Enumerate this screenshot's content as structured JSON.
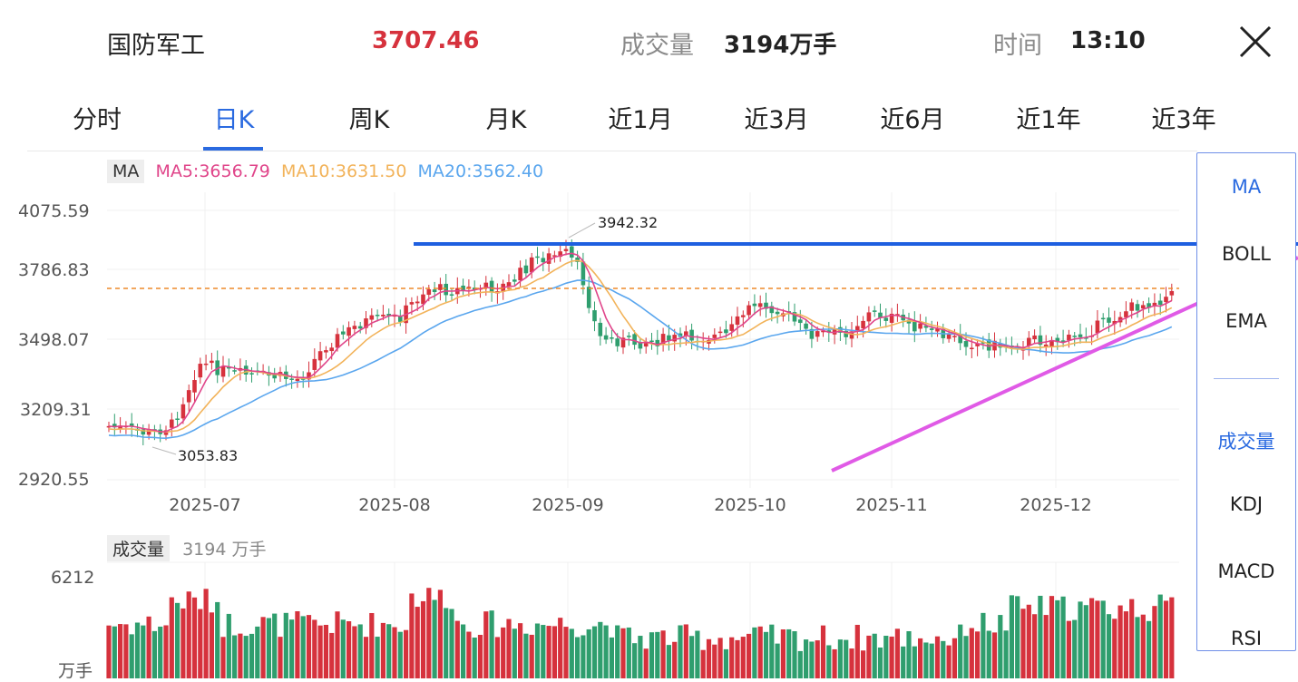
{
  "header": {
    "name": "国防军工",
    "price": "3707.46",
    "volume_label": "成交量",
    "volume_value": "3194万手",
    "time_label": "时间",
    "time_value": "13:10",
    "close_icon": "close-icon"
  },
  "tabs": [
    {
      "label": "分时",
      "active": false
    },
    {
      "label": "日K",
      "active": true
    },
    {
      "label": "周K",
      "active": false
    },
    {
      "label": "月K",
      "active": false
    },
    {
      "label": "近1月",
      "active": false
    },
    {
      "label": "近3月",
      "active": false
    },
    {
      "label": "近6月",
      "active": false
    },
    {
      "label": "近1年",
      "active": false
    },
    {
      "label": "近3年",
      "active": false
    }
  ],
  "ma_legend": {
    "tag": "MA",
    "ma5": "MA5:3656.79",
    "ma10": "MA10:3631.50",
    "ma20": "MA20:3562.40",
    "colors": {
      "ma5": "#e0458a",
      "ma10": "#f2b35a",
      "ma20": "#5aa6ee"
    }
  },
  "y_axis": [
    "4075.59",
    "3786.83",
    "3498.07",
    "3209.31",
    "2920.55"
  ],
  "x_axis": [
    "2025-07",
    "2025-08",
    "2025-09",
    "2025-10",
    "2025-11",
    "2025-12"
  ],
  "annotations": {
    "high": "3942.32",
    "low": "3053.83"
  },
  "volume_panel": {
    "tag": "成交量",
    "value": "3194 万手",
    "y_max": "6212",
    "unit": "万手"
  },
  "side_menu": {
    "main": [
      {
        "label": "MA",
        "active": true
      },
      {
        "label": "BOLL",
        "active": false
      },
      {
        "label": "EMA",
        "active": false
      }
    ],
    "sub": [
      {
        "label": "成交量",
        "active": true
      },
      {
        "label": "KDJ",
        "active": false
      },
      {
        "label": "MACD",
        "active": false
      },
      {
        "label": "RSI",
        "active": false
      }
    ]
  },
  "colors": {
    "up": "#d6323d",
    "down": "#2f9e6e",
    "accent": "#2a6ae0",
    "drawn_h_line": "#1e5fe0",
    "drawn_trend_line": "#e05ae6",
    "ref_line": "#ee8a2a"
  }
}
